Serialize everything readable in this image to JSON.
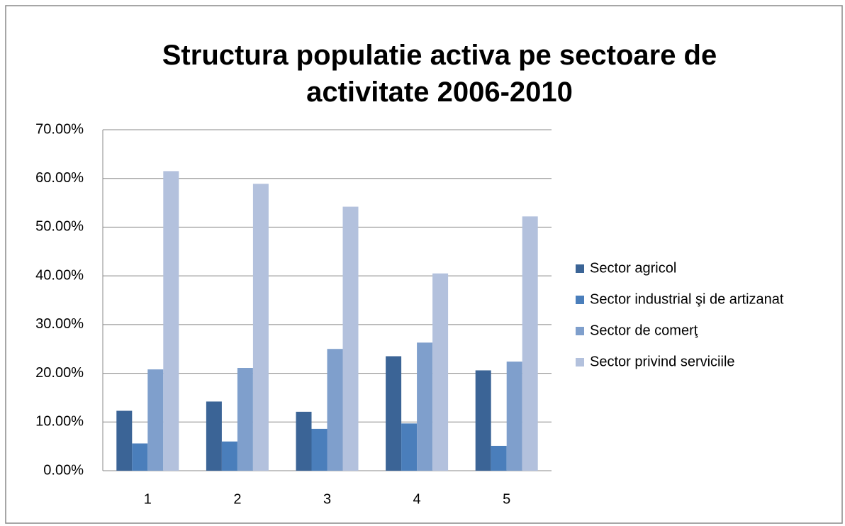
{
  "chart_data": {
    "type": "bar",
    "title": "Structura populatie activa pe sectoare de activitate 2006-2010",
    "categories": [
      "1",
      "2",
      "3",
      "4",
      "5"
    ],
    "series": [
      {
        "name": "Sector agricol",
        "color": "#3b6496",
        "values": [
          12.3,
          14.2,
          12.1,
          23.5,
          20.6
        ]
      },
      {
        "name": "Sector industrial şi de artizanat",
        "color": "#4a7ebb",
        "values": [
          5.6,
          6.0,
          8.6,
          9.7,
          5.1
        ]
      },
      {
        "name": "Sector de comerţ",
        "color": "#7f9fcc",
        "values": [
          20.8,
          21.1,
          25.0,
          26.3,
          22.4
        ]
      },
      {
        "name": "Sector privind serviciile",
        "color": "#b3c1dd",
        "values": [
          61.5,
          58.9,
          54.2,
          40.5,
          52.2
        ]
      }
    ],
    "ylim": [
      0,
      70
    ],
    "yticks": [
      {
        "value": 0,
        "label": "0.00%"
      },
      {
        "value": 10,
        "label": "10.00%"
      },
      {
        "value": 20,
        "label": "20.00%"
      },
      {
        "value": 30,
        "label": "30.00%"
      },
      {
        "value": 40,
        "label": "40.00%"
      },
      {
        "value": 50,
        "label": "50.00%"
      },
      {
        "value": 60,
        "label": "60.00%"
      },
      {
        "value": 70,
        "label": "70.00%"
      }
    ],
    "grid": true,
    "legend": "right"
  }
}
